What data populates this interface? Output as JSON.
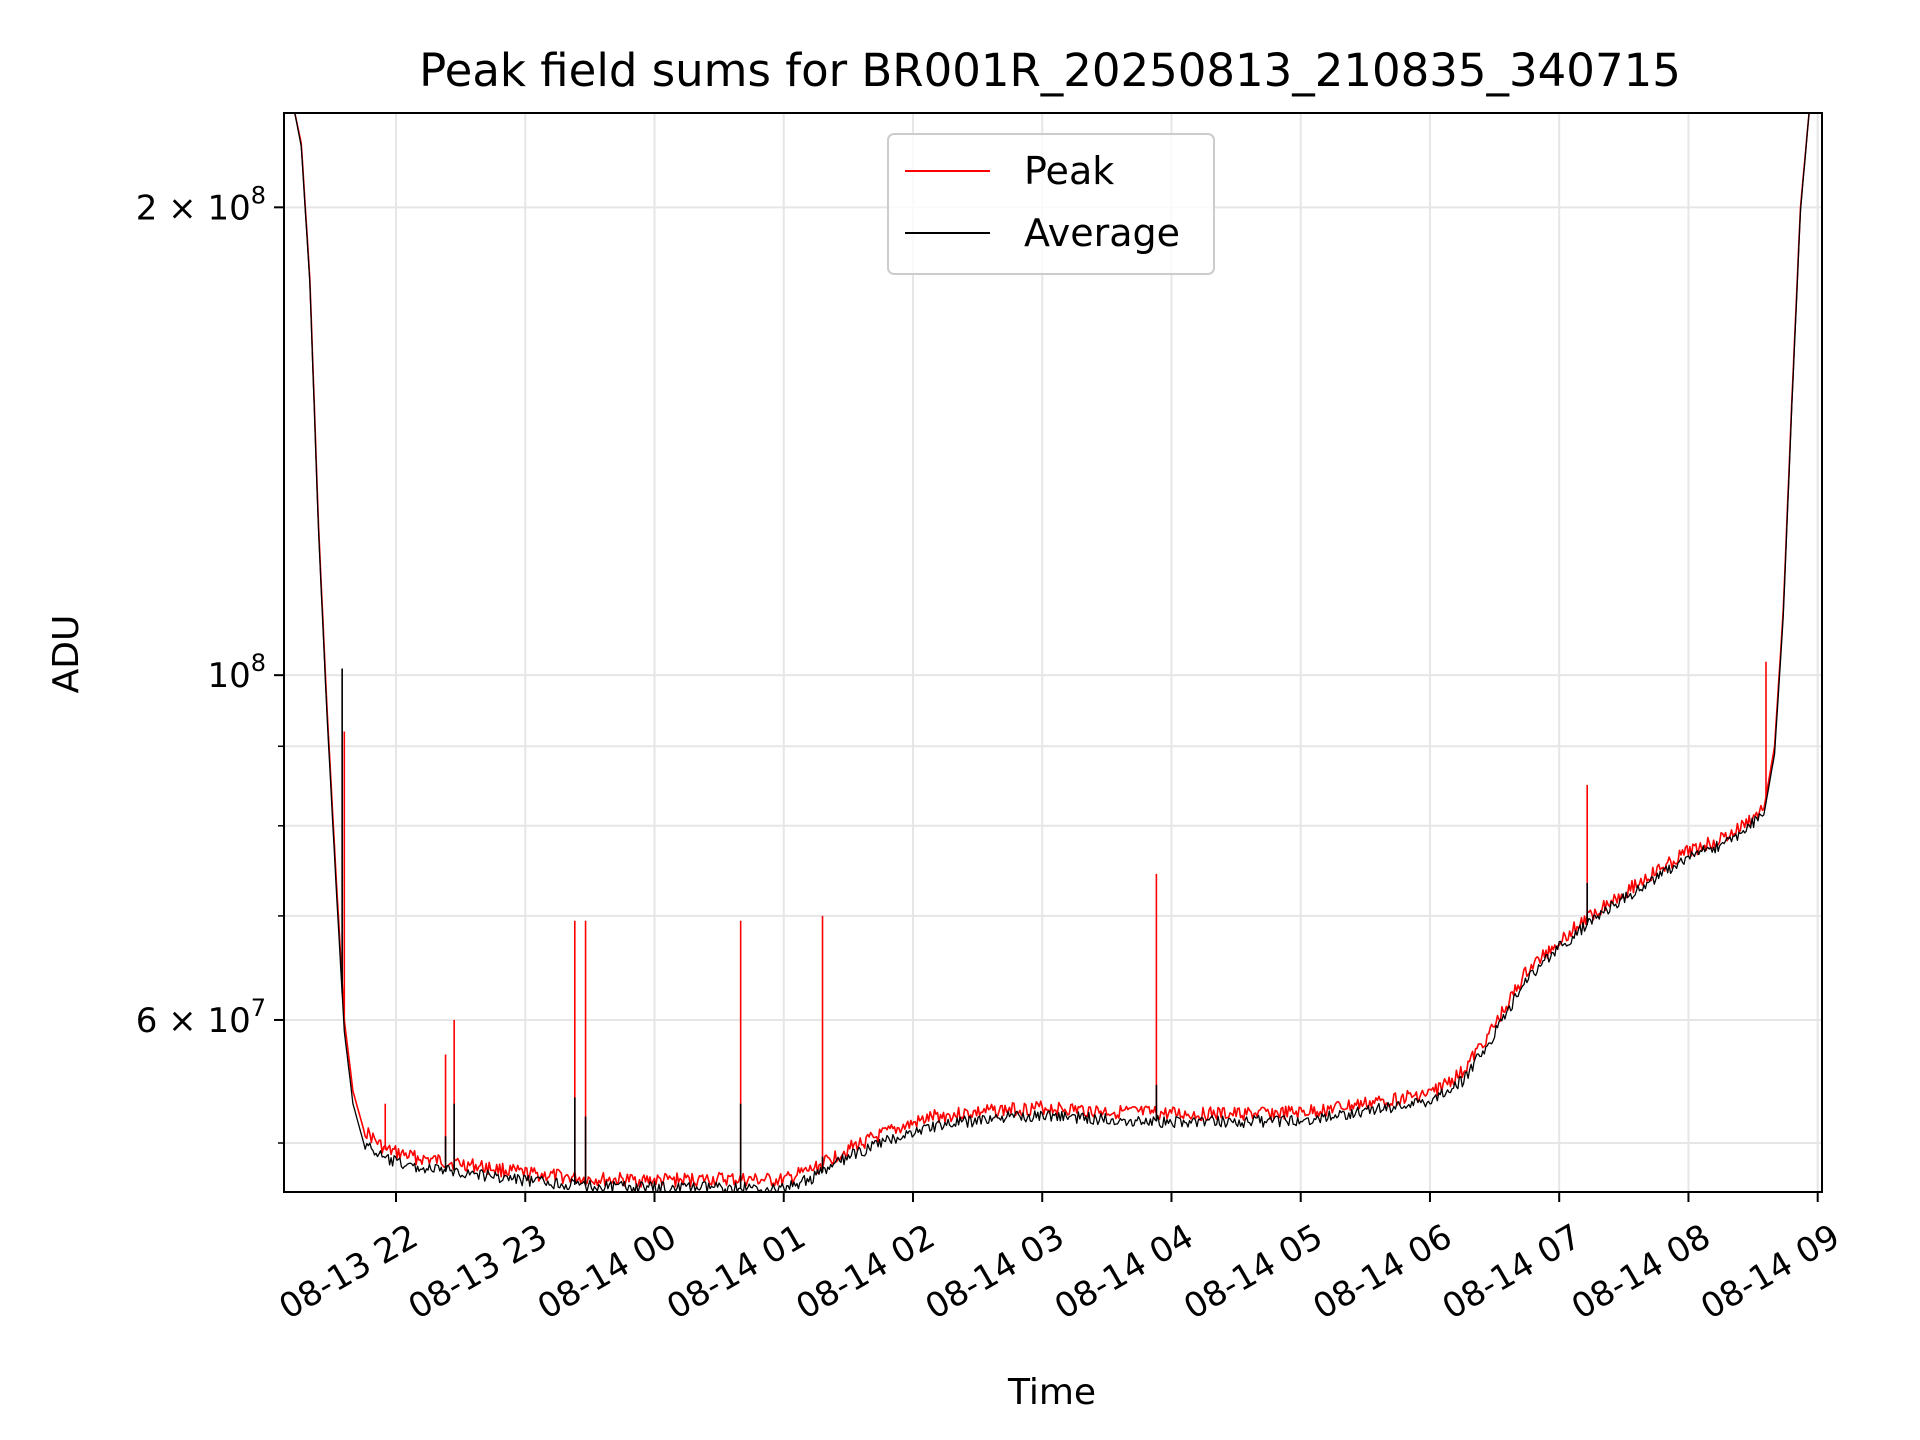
{
  "chart_data": {
    "type": "line",
    "title": "Peak field sums for BR001R_20250813_210835_340715",
    "xlabel": "Time",
    "ylabel": "ADU",
    "yscale": "log",
    "ylim": [
      46500000,
      230000000
    ],
    "xlim": [
      "2025-08-13 21:08",
      "2025-08-14 09:02"
    ],
    "grid": true,
    "legend_position": "upper center",
    "x_ticks": [
      {
        "t": "2025-08-13 22:00",
        "label": "08-13 22"
      },
      {
        "t": "2025-08-13 23:00",
        "label": "08-13 23"
      },
      {
        "t": "2025-08-14 00:00",
        "label": "08-14 00"
      },
      {
        "t": "2025-08-14 01:00",
        "label": "08-14 01"
      },
      {
        "t": "2025-08-14 02:00",
        "label": "08-14 02"
      },
      {
        "t": "2025-08-14 03:00",
        "label": "08-14 03"
      },
      {
        "t": "2025-08-14 04:00",
        "label": "08-14 04"
      },
      {
        "t": "2025-08-14 05:00",
        "label": "08-14 05"
      },
      {
        "t": "2025-08-14 06:00",
        "label": "08-14 06"
      },
      {
        "t": "2025-08-14 07:00",
        "label": "08-14 07"
      },
      {
        "t": "2025-08-14 08:00",
        "label": "08-14 08"
      },
      {
        "t": "2025-08-14 09:00",
        "label": "08-14 09"
      }
    ],
    "y_major_ticks": [
      {
        "v": 60000000,
        "mant": "6",
        "exp": "7"
      },
      {
        "v": 100000000,
        "mant": "",
        "exp": "8"
      },
      {
        "v": 200000000,
        "mant": "2",
        "exp": "8"
      }
    ],
    "y_minor_ticks": [
      50000000,
      70000000,
      80000000,
      90000000
    ],
    "series": [
      {
        "name": "Peak",
        "color": "#ff0000",
        "points": [
          [
            "2025-08-13 21:08",
            230000000
          ],
          [
            "2025-08-13 21:13",
            230000000
          ],
          [
            "2025-08-13 21:16",
            220000000
          ],
          [
            "2025-08-13 21:20",
            180000000
          ],
          [
            "2025-08-13 21:24",
            125000000
          ],
          [
            "2025-08-13 21:28",
            95000000
          ],
          [
            "2025-08-13 21:32",
            75000000
          ],
          [
            "2025-08-13 21:36",
            60000000
          ],
          [
            "2025-08-13 21:40",
            54000000
          ],
          [
            "2025-08-13 21:45",
            51000000
          ],
          [
            "2025-08-13 21:55",
            49500000
          ],
          [
            "2025-08-13 22:10",
            48900000
          ],
          [
            "2025-08-13 22:30",
            48500000
          ],
          [
            "2025-08-13 23:00",
            47800000
          ],
          [
            "2025-08-13 23:30",
            47400000
          ],
          [
            "2025-08-14 00:00",
            47300000
          ],
          [
            "2025-08-14 00:30",
            47400000
          ],
          [
            "2025-08-14 01:00",
            47300000
          ],
          [
            "2025-08-14 01:15",
            48200000
          ],
          [
            "2025-08-14 01:30",
            49600000
          ],
          [
            "2025-08-14 01:50",
            50900000
          ],
          [
            "2025-08-14 02:10",
            52000000
          ],
          [
            "2025-08-14 02:40",
            52500000
          ],
          [
            "2025-08-14 03:00",
            52700000
          ],
          [
            "2025-08-14 03:30",
            52400000
          ],
          [
            "2025-08-14 04:00",
            52200000
          ],
          [
            "2025-08-14 04:30",
            52200000
          ],
          [
            "2025-08-14 05:00",
            52300000
          ],
          [
            "2025-08-14 05:30",
            53000000
          ],
          [
            "2025-08-14 06:00",
            53800000
          ],
          [
            "2025-08-14 06:15",
            55500000
          ],
          [
            "2025-08-14 06:30",
            59500000
          ],
          [
            "2025-08-14 06:45",
            64500000
          ],
          [
            "2025-08-14 07:00",
            67500000
          ],
          [
            "2025-08-14 07:20",
            71000000
          ],
          [
            "2025-08-14 07:40",
            74000000
          ],
          [
            "2025-08-14 08:00",
            77000000
          ],
          [
            "2025-08-14 08:20",
            79000000
          ],
          [
            "2025-08-14 08:35",
            82000000
          ],
          [
            "2025-08-14 08:40",
            90000000
          ],
          [
            "2025-08-14 08:44",
            110000000
          ],
          [
            "2025-08-14 08:48",
            150000000
          ],
          [
            "2025-08-14 08:52",
            200000000
          ],
          [
            "2025-08-14 08:56",
            230000000
          ],
          [
            "2025-08-14 09:02",
            230000000
          ]
        ],
        "spikes": [
          [
            "2025-08-13 21:36",
            92000000
          ],
          [
            "2025-08-13 21:55",
            53000000
          ],
          [
            "2025-08-13 22:23",
            57000000
          ],
          [
            "2025-08-13 22:27",
            60000000
          ],
          [
            "2025-08-13 23:23",
            69500000
          ],
          [
            "2025-08-13 23:28",
            69500000
          ],
          [
            "2025-08-14 00:40",
            69500000
          ],
          [
            "2025-08-14 01:18",
            70000000
          ],
          [
            "2025-08-14 03:53",
            74500000
          ],
          [
            "2025-08-14 07:13",
            85000000
          ],
          [
            "2025-08-14 08:36",
            102000000
          ]
        ]
      },
      {
        "name": "Average",
        "color": "#000000",
        "points": [
          [
            "2025-08-13 21:08",
            230000000
          ],
          [
            "2025-08-13 21:13",
            230000000
          ],
          [
            "2025-08-13 21:16",
            219000000
          ],
          [
            "2025-08-13 21:20",
            179000000
          ],
          [
            "2025-08-13 21:24",
            124000000
          ],
          [
            "2025-08-13 21:28",
            94000000
          ],
          [
            "2025-08-13 21:32",
            74000000
          ],
          [
            "2025-08-13 21:36",
            59000000
          ],
          [
            "2025-08-13 21:40",
            53000000
          ],
          [
            "2025-08-13 21:45",
            50000000
          ],
          [
            "2025-08-13 21:55",
            48800000
          ],
          [
            "2025-08-13 22:10",
            48200000
          ],
          [
            "2025-08-13 22:30",
            47900000
          ],
          [
            "2025-08-13 23:00",
            47300000
          ],
          [
            "2025-08-13 23:30",
            46900000
          ],
          [
            "2025-08-14 00:00",
            46800000
          ],
          [
            "2025-08-14 00:30",
            46800000
          ],
          [
            "2025-08-14 01:00",
            46700000
          ],
          [
            "2025-08-14 01:15",
            47600000
          ],
          [
            "2025-08-14 01:30",
            49000000
          ],
          [
            "2025-08-14 01:50",
            50300000
          ],
          [
            "2025-08-14 02:10",
            51300000
          ],
          [
            "2025-08-14 02:40",
            51900000
          ],
          [
            "2025-08-14 03:00",
            52100000
          ],
          [
            "2025-08-14 03:30",
            51800000
          ],
          [
            "2025-08-14 04:00",
            51600000
          ],
          [
            "2025-08-14 04:30",
            51600000
          ],
          [
            "2025-08-14 05:00",
            51700000
          ],
          [
            "2025-08-14 05:30",
            52400000
          ],
          [
            "2025-08-14 06:00",
            53200000
          ],
          [
            "2025-08-14 06:15",
            54800000
          ],
          [
            "2025-08-14 06:30",
            58800000
          ],
          [
            "2025-08-14 06:45",
            63800000
          ],
          [
            "2025-08-14 07:00",
            66800000
          ],
          [
            "2025-08-14 07:20",
            70300000
          ],
          [
            "2025-08-14 07:40",
            73300000
          ],
          [
            "2025-08-14 08:00",
            76300000
          ],
          [
            "2025-08-14 08:20",
            78300000
          ],
          [
            "2025-08-14 08:35",
            81300000
          ],
          [
            "2025-08-14 08:40",
            89000000
          ],
          [
            "2025-08-14 08:44",
            109000000
          ],
          [
            "2025-08-14 08:48",
            149000000
          ],
          [
            "2025-08-14 08:52",
            199000000
          ],
          [
            "2025-08-14 08:56",
            230000000
          ],
          [
            "2025-08-14 09:02",
            230000000
          ]
        ],
        "spikes": [
          [
            "2025-08-13 21:35",
            101000000
          ],
          [
            "2025-08-13 22:23",
            50500000
          ],
          [
            "2025-08-13 22:27",
            53000000
          ],
          [
            "2025-08-13 23:23",
            53500000
          ],
          [
            "2025-08-13 23:28",
            52000000
          ],
          [
            "2025-08-14 00:40",
            53000000
          ],
          [
            "2025-08-14 01:18",
            49000000
          ],
          [
            "2025-08-14 03:53",
            54500000
          ],
          [
            "2025-08-14 07:13",
            73500000
          ]
        ]
      }
    ]
  }
}
